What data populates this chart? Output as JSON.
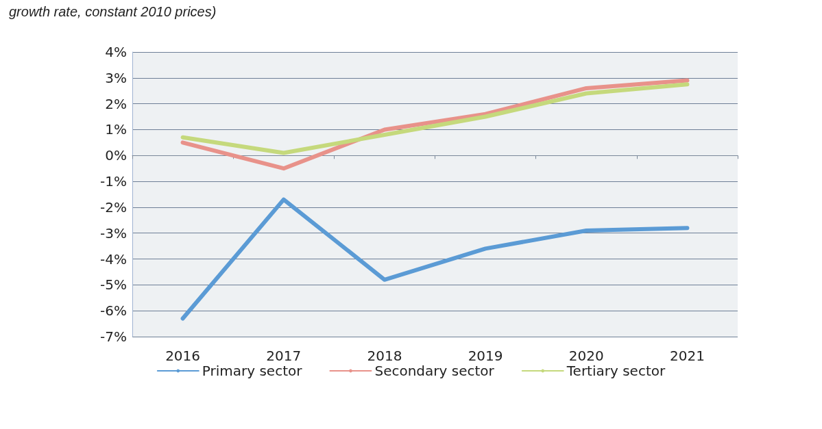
{
  "chart_data": {
    "type": "line",
    "title": "growth rate, constant 2010 prices)",
    "categories": [
      "2016",
      "2017",
      "2018",
      "2019",
      "2020",
      "2021"
    ],
    "series": [
      {
        "name": "Primary sector",
        "color": "#5b9bd5",
        "values": [
          -6.3,
          -1.7,
          -4.8,
          -3.6,
          -2.9,
          -2.8
        ]
      },
      {
        "name": "Secondary sector",
        "color": "#e8928a",
        "values": [
          0.5,
          -0.5,
          1.0,
          1.6,
          2.6,
          2.9
        ]
      },
      {
        "name": "Tertiary sector",
        "color": "#c5d97c",
        "values": [
          0.7,
          0.1,
          0.8,
          1.5,
          2.4,
          2.75
        ]
      }
    ],
    "ylim": [
      -7,
      4
    ],
    "yticks": [
      {
        "value": -7,
        "label": "-7%"
      },
      {
        "value": -6,
        "label": "-6%"
      },
      {
        "value": -5,
        "label": "-5%"
      },
      {
        "value": -4,
        "label": "-4%"
      },
      {
        "value": -3,
        "label": "-3%"
      },
      {
        "value": -2,
        "label": "-2%"
      },
      {
        "value": -1,
        "label": "-1%"
      },
      {
        "value": 0,
        "label": "0%"
      },
      {
        "value": 1,
        "label": "1%"
      },
      {
        "value": 2,
        "label": "2%"
      },
      {
        "value": 3,
        "label": "3%"
      },
      {
        "value": 4,
        "label": "4%"
      }
    ],
    "grid": "y",
    "legend": "bottom",
    "marker": "none",
    "line_style": "solid"
  }
}
